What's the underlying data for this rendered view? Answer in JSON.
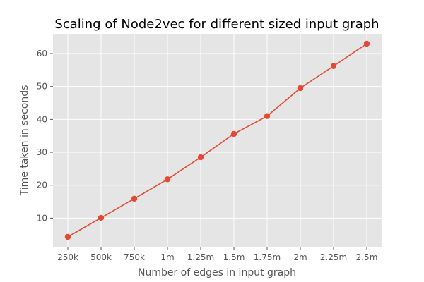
{
  "chart_data": {
    "type": "line",
    "title": "Scaling of Node2vec for different sized input graph",
    "xlabel": "Number of edges in input graph",
    "ylabel": "Time taken in seconds",
    "categories": [
      "250k",
      "500k",
      "750k",
      "1m",
      "1.25m",
      "1.5m",
      "1.75m",
      "2m",
      "2.25m",
      "2.5m"
    ],
    "series": [
      {
        "values": [
          4.3,
          10.1,
          15.9,
          21.8,
          28.5,
          35.6,
          41.0,
          49.5,
          56.2,
          63.0
        ]
      }
    ],
    "ylim": [
      1.3,
      66.0
    ],
    "yticks": [
      "10",
      "20",
      "30",
      "40",
      "50",
      "60"
    ],
    "grid": true,
    "colors": {
      "line": "#E24A33",
      "background": "#E5E5E5",
      "grid": "#FFFFFF"
    }
  }
}
